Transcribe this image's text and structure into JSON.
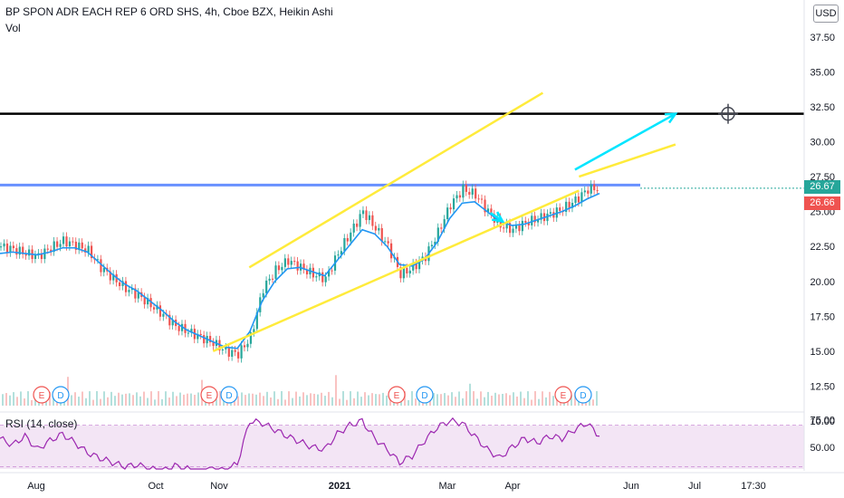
{
  "header": {
    "title": "BP SPON ADR EACH REP 6 ORD SHS, 4h, Cboe BZX, Heikin Ashi",
    "volume_label": "Vol",
    "currency": "USD"
  },
  "price_tags": {
    "last": "26.67",
    "prev": "26.66",
    "last_color": "#26a69a",
    "prev_color": "#ef5350"
  },
  "rsi": {
    "label": "RSI (14, close)",
    "ticks": [
      "75.00",
      "50.00"
    ],
    "color": "#9c27b0"
  },
  "events": [
    {
      "label": "E",
      "color": "#ef5350"
    },
    {
      "label": "D",
      "color": "#2196f3"
    },
    {
      "label": "E",
      "color": "#ef5350"
    },
    {
      "label": "D",
      "color": "#2196f3"
    },
    {
      "label": "E",
      "color": "#ef5350"
    },
    {
      "label": "D",
      "color": "#2196f3"
    },
    {
      "label": "E",
      "color": "#ef5350"
    },
    {
      "label": "D",
      "color": "#2196f3"
    }
  ],
  "chart_data": {
    "type": "line",
    "y_ticks": [
      "37.50",
      "35.00",
      "32.50",
      "30.00",
      "27.50",
      "25.00",
      "22.50",
      "20.00",
      "17.50",
      "15.00",
      "12.50",
      "10.00"
    ],
    "ylim": [
      10.0,
      39.5
    ],
    "x_ticks": [
      "Aug",
      "Oct",
      "Nov",
      "2021",
      "Mar",
      "Apr",
      "Jun",
      "Jul",
      "17:30"
    ],
    "series": [
      {
        "values": [
          22.5,
          22.3,
          22.0,
          21.8,
          22.4,
          22.9,
          22.6,
          22.2,
          21.0,
          20.2,
          19.5,
          19.0,
          18.3,
          17.6,
          16.8,
          16.4,
          16.0,
          15.6,
          15.0,
          14.8,
          16.0,
          19.5,
          20.8,
          21.5,
          21.0,
          20.5,
          20.2,
          22.0,
          23.5,
          25.0,
          23.8,
          22.5,
          20.5,
          21.0,
          21.8,
          23.5,
          25.5,
          26.6,
          26.2,
          25.0,
          24.0,
          23.7,
          24.2,
          24.5,
          24.8,
          25.2,
          25.8,
          26.6,
          26.67
        ]
      },
      {
        "values": [
          22.0,
          22.1,
          22.0,
          21.9,
          22.1,
          22.4,
          22.4,
          22.1,
          21.3,
          20.5,
          19.8,
          19.3,
          18.6,
          17.9,
          17.1,
          16.5,
          16.1,
          15.7,
          15.3,
          15.2,
          16.4,
          18.6,
          20.0,
          20.9,
          21.0,
          20.7,
          20.4,
          21.5,
          22.6,
          23.7,
          23.4,
          22.5,
          21.2,
          21.1,
          21.6,
          22.8,
          24.5,
          25.6,
          25.7,
          25.0,
          24.3,
          24.0,
          24.1,
          24.4,
          24.7,
          25.0,
          25.4,
          25.9,
          26.3
        ]
      }
    ],
    "horizontal_levels": [
      {
        "price": 32.0,
        "color": "#000000"
      },
      {
        "price": 26.9,
        "color": "#2962ff"
      }
    ],
    "trendlines": [
      {
        "from": [
          0.265,
          15.0
        ],
        "to": [
          0.72,
          26.5
        ],
        "color": "#ffeb3b"
      },
      {
        "from": [
          0.31,
          21.0
        ],
        "to": [
          0.675,
          33.5
        ],
        "color": "#ffeb3b"
      },
      {
        "from": [
          0.72,
          27.5
        ],
        "to": [
          0.84,
          29.8
        ],
        "color": "#ffeb3b"
      }
    ],
    "arrows": [
      {
        "from": [
          0.715,
          28.0
        ],
        "to": [
          0.84,
          32.0
        ],
        "color": "#00e5ff"
      },
      {
        "from": [
          0.61,
          24.9
        ],
        "to": [
          0.625,
          24.3
        ],
        "color": "#00e5ff"
      }
    ],
    "rsi_values": [
      58,
      52,
      60,
      48,
      56,
      62,
      54,
      45,
      40,
      36,
      32,
      34,
      30,
      28,
      33,
      30,
      27,
      30,
      28,
      35,
      74,
      72,
      66,
      60,
      55,
      50,
      48,
      62,
      70,
      74,
      58,
      48,
      36,
      42,
      56,
      68,
      74,
      72,
      60,
      48,
      40,
      50,
      58,
      54,
      60,
      58,
      66,
      72,
      60
    ],
    "rsi_ylim": [
      30,
      78
    ]
  }
}
